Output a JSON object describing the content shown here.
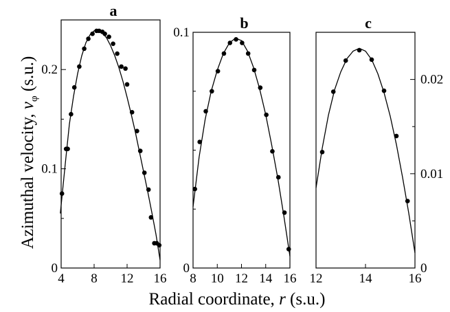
{
  "figure": {
    "ylabel_main": "Azimuthal velocity, ",
    "ylabel_var": "v",
    "ylabel_sub": "φ",
    "ylabel_unit": " (s.u.)",
    "xlabel_main": "Radial coordinate, ",
    "xlabel_var": "r",
    "xlabel_unit": " (s.u.)"
  },
  "chart_data": [
    {
      "type": "scatter",
      "title": "a",
      "xlim": [
        4,
        16
      ],
      "ylim": [
        0,
        0.25
      ],
      "xticks": [
        4,
        8,
        12,
        16
      ],
      "xtick_labels": [
        "4",
        "8",
        "12",
        "16"
      ],
      "yticks": [
        0,
        0.1,
        0.2
      ],
      "ytick_labels": [
        "0",
        "0.1",
        "0.2"
      ],
      "ytick_side": "left",
      "ytick_minor": [
        0.05,
        0.15
      ],
      "grid": false,
      "series": [
        {
          "kind": "points",
          "x": [
            4.1,
            4.6,
            4.8,
            5.2,
            5.6,
            6.2,
            6.8,
            7.3,
            7.8,
            8.3,
            8.6,
            9.0,
            9.3,
            9.8,
            10.3,
            10.8,
            11.3,
            11.8,
            12.0,
            12.6,
            13.2,
            13.6,
            14.1,
            14.6,
            14.9,
            15.3,
            15.6,
            15.9
          ],
          "y": [
            0.075,
            0.12,
            0.12,
            0.155,
            0.182,
            0.203,
            0.221,
            0.231,
            0.236,
            0.239,
            0.239,
            0.238,
            0.236,
            0.233,
            0.226,
            0.216,
            0.203,
            0.201,
            0.185,
            0.157,
            0.138,
            0.118,
            0.096,
            0.079,
            0.051,
            0.025,
            0.025,
            0.023
          ]
        },
        {
          "kind": "fit",
          "x": [
            3.9,
            4.5,
            5.0,
            5.5,
            6.0,
            6.5,
            7.0,
            7.5,
            8.0,
            8.5,
            9.0,
            9.5,
            10.0,
            10.5,
            11.0,
            11.5,
            12.0,
            12.5,
            13.0,
            13.5,
            14.0,
            14.5,
            15.0,
            15.5,
            16.0
          ],
          "y": [
            0.055,
            0.105,
            0.145,
            0.173,
            0.196,
            0.214,
            0.227,
            0.235,
            0.239,
            0.24,
            0.237,
            0.232,
            0.224,
            0.214,
            0.202,
            0.188,
            0.172,
            0.155,
            0.137,
            0.117,
            0.097,
            0.077,
            0.056,
            0.034,
            0.008
          ]
        }
      ]
    },
    {
      "type": "scatter",
      "title": "b",
      "xlim": [
        8,
        16
      ],
      "ylim": [
        0,
        0.1
      ],
      "xticks": [
        8,
        10,
        12,
        14,
        16
      ],
      "xtick_labels": [
        "8",
        "10",
        "12",
        "14",
        "16"
      ],
      "yticks": [
        0,
        0.1
      ],
      "ytick_labels": [
        "0",
        "0.1"
      ],
      "ytick_side": "left",
      "ytick_minor": [
        0.025,
        0.05,
        0.075
      ],
      "grid": false,
      "series": [
        {
          "kind": "points",
          "x": [
            8.15,
            8.55,
            9.05,
            9.55,
            10.05,
            10.55,
            11.05,
            11.55,
            12.05,
            12.55,
            13.05,
            13.55,
            14.05,
            14.55,
            15.05,
            15.55,
            15.9
          ],
          "y": [
            0.0335,
            0.0535,
            0.0665,
            0.075,
            0.0835,
            0.091,
            0.0955,
            0.097,
            0.0955,
            0.091,
            0.084,
            0.0765,
            0.065,
            0.0495,
            0.0385,
            0.0235,
            0.008
          ],
          "point_dx": [
            0,
            0,
            0,
            0,
            0,
            0,
            0,
            0,
            0,
            0,
            0,
            0,
            0,
            0,
            0,
            0,
            0
          ]
        },
        {
          "kind": "fit",
          "x": [
            8.0,
            8.5,
            9.0,
            9.5,
            10.0,
            10.5,
            11.0,
            11.5,
            12.0,
            12.5,
            13.0,
            13.5,
            14.0,
            14.5,
            15.0,
            15.5,
            16.0
          ],
          "y": [
            0.026,
            0.047,
            0.063,
            0.075,
            0.084,
            0.091,
            0.0955,
            0.0975,
            0.0965,
            0.092,
            0.085,
            0.076,
            0.065,
            0.052,
            0.038,
            0.022,
            0.005
          ]
        }
      ]
    },
    {
      "type": "scatter",
      "title": "c",
      "xlim": [
        12,
        16
      ],
      "ylim": [
        0,
        0.025
      ],
      "xticks": [
        12,
        14,
        16
      ],
      "xtick_labels": [
        "12",
        "14",
        "16"
      ],
      "yticks": [
        0,
        0.01,
        0.02
      ],
      "ytick_labels": [
        "0",
        "0.01",
        "0.02"
      ],
      "ytick_side": "right",
      "ytick_minor": [
        0.005,
        0.015
      ],
      "grid": false,
      "series": [
        {
          "kind": "points",
          "x": [
            12.25,
            12.7,
            13.2,
            13.75,
            14.25,
            14.75,
            15.25,
            15.7
          ],
          "y": [
            0.0123,
            0.0187,
            0.022,
            0.0231,
            0.0221,
            0.0188,
            0.014,
            0.0071
          ]
        },
        {
          "kind": "fit",
          "x": [
            12.0,
            12.25,
            12.5,
            12.75,
            13.0,
            13.25,
            13.5,
            13.75,
            14.0,
            14.25,
            14.5,
            14.75,
            15.0,
            15.25,
            15.5,
            15.75,
            16.0
          ],
          "y": [
            0.0085,
            0.0127,
            0.0162,
            0.0189,
            0.0208,
            0.0222,
            0.023,
            0.0233,
            0.023,
            0.0221,
            0.0206,
            0.0186,
            0.0161,
            0.0131,
            0.0096,
            0.0058,
            0.0016
          ]
        }
      ]
    }
  ]
}
